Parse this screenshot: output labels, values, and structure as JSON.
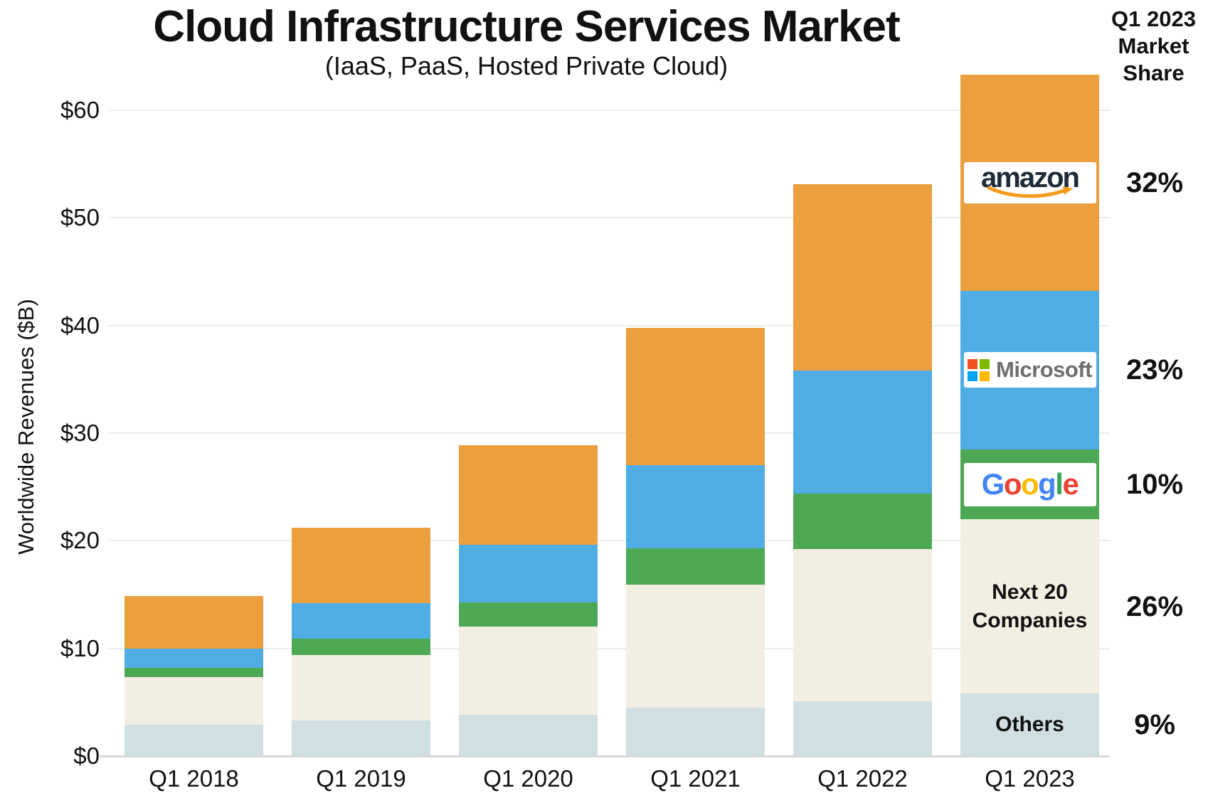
{
  "header": {
    "title": "Cloud Infrastructure Services Market",
    "subtitle": "(IaaS, PaaS, Hosted Private Cloud)",
    "right_title_lines": [
      "Q1 2023",
      "Market",
      "Share"
    ]
  },
  "y_axis": {
    "title": "Worldwide Revenues ($B)",
    "tick_labels": [
      "$0",
      "$10",
      "$20",
      "$30",
      "$40",
      "$50",
      "$60"
    ]
  },
  "chart_data": {
    "type": "bar",
    "stacked": true,
    "title": "Cloud Infrastructure Services Market",
    "subtitle": "(IaaS, PaaS, Hosted Private Cloud)",
    "ylabel": "Worldwide Revenues ($B)",
    "xlabel": "",
    "ylim": [
      0,
      60
    ],
    "grid": true,
    "categories": [
      "Q1 2018",
      "Q1 2019",
      "Q1 2020",
      "Q1 2021",
      "Q1 2022",
      "Q1 2023"
    ],
    "series": [
      {
        "name": "Others",
        "color": "#CFDFE2",
        "values": [
          2.9,
          3.3,
          3.8,
          4.5,
          5.1,
          5.8
        ]
      },
      {
        "name": "Next 20 Companies",
        "color": "#F2EFE2",
        "values": [
          4.4,
          6.1,
          8.2,
          11.4,
          14.1,
          16.2
        ]
      },
      {
        "name": "Google",
        "color": "#4DA854",
        "values": [
          0.9,
          1.5,
          2.3,
          3.4,
          5.2,
          6.5
        ]
      },
      {
        "name": "Microsoft",
        "color": "#4FADE4",
        "values": [
          1.8,
          3.3,
          5.3,
          7.7,
          11.4,
          14.7
        ]
      },
      {
        "name": "Amazon",
        "color": "#EC9F3F",
        "values": [
          4.9,
          7.0,
          9.3,
          12.8,
          17.3,
          20.1
        ]
      }
    ]
  },
  "market_share": {
    "entries": [
      {
        "company": "Amazon",
        "share": "32%"
      },
      {
        "company": "Microsoft",
        "share": "23%"
      },
      {
        "company": "Google",
        "share": "10%"
      },
      {
        "company": "Next 20 Companies",
        "share": "26%"
      },
      {
        "company": "Others",
        "share": "9%"
      }
    ]
  },
  "bar_annotations": {
    "next20_lines": [
      "Next 20",
      "Companies"
    ],
    "others_label": "Others"
  },
  "logos": {
    "amazon": {
      "text": "amazon",
      "text_color": "#1D2B3A",
      "smile_color": "#F59B20"
    },
    "microsoft": {
      "text": "Microsoft",
      "text_color": "#6E6E6E",
      "square_colors": [
        "#F25022",
        "#7FBA00",
        "#00A4EF",
        "#FFB900"
      ]
    },
    "google": {
      "letters": [
        {
          "ch": "G",
          "color": "#4285F4"
        },
        {
          "ch": "o",
          "color": "#EA4335"
        },
        {
          "ch": "o",
          "color": "#FBBC05"
        },
        {
          "ch": "g",
          "color": "#4285F4"
        },
        {
          "ch": "l",
          "color": "#34A853"
        },
        {
          "ch": "e",
          "color": "#EA4335"
        }
      ]
    }
  }
}
